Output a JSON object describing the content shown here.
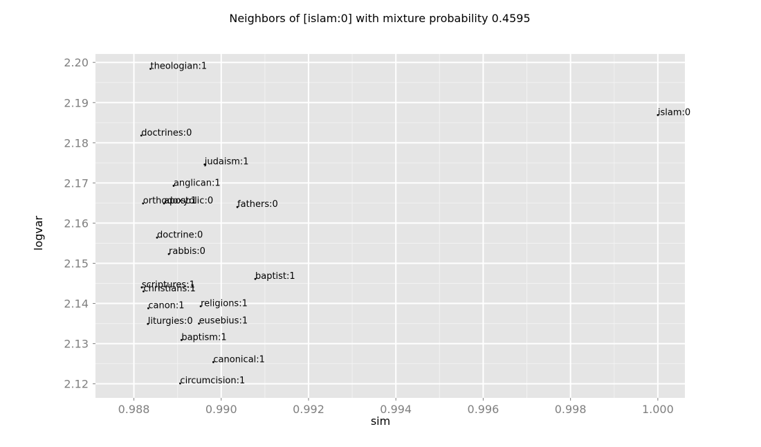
{
  "chart_data": {
    "type": "scatter",
    "title": "Neighbors of [islam:0] with mixture probability 0.4595",
    "xlabel": "sim",
    "ylabel": "logvar",
    "xlim": [
      0.98712,
      1.00062
    ],
    "ylim": [
      2.1165,
      2.2021
    ],
    "x_ticks": [
      0.988,
      0.99,
      0.992,
      0.994,
      0.996,
      0.998,
      1.0
    ],
    "x_tick_labels": [
      "0.988",
      "0.990",
      "0.992",
      "0.994",
      "0.996",
      "0.998",
      "1.000"
    ],
    "y_ticks": [
      2.12,
      2.13,
      2.14,
      2.15,
      2.16,
      2.17,
      2.18,
      2.19,
      2.2
    ],
    "y_tick_labels": [
      "2.12",
      "2.13",
      "2.14",
      "2.15",
      "2.16",
      "2.17",
      "2.18",
      "2.19",
      "2.20"
    ],
    "grid": true,
    "points": [
      {
        "label": "theologian:1",
        "x": 0.98838,
        "y": 2.1984
      },
      {
        "label": "islam:0",
        "x": 1.0,
        "y": 2.1869
      },
      {
        "label": "doctrines:0",
        "x": 0.98817,
        "y": 2.1818
      },
      {
        "label": "judaism:1",
        "x": 0.98962,
        "y": 2.1746
      },
      {
        "label": "anglican:1",
        "x": 0.98891,
        "y": 2.1693
      },
      {
        "label": "orthodoxy:1",
        "x": 0.98821,
        "y": 2.1649
      },
      {
        "label": "apostolic:0",
        "x": 0.98869,
        "y": 2.1649
      },
      {
        "label": "fathers:0",
        "x": 0.99037,
        "y": 2.164
      },
      {
        "label": "doctrine:0",
        "x": 0.98853,
        "y": 2.1564
      },
      {
        "label": "rabbis:0",
        "x": 0.9888,
        "y": 2.1523
      },
      {
        "label": "baptist:1",
        "x": 0.99078,
        "y": 2.1461
      },
      {
        "label": "scriptures:1",
        "x": 0.98818,
        "y": 2.144
      },
      {
        "label": "christians:1",
        "x": 0.98822,
        "y": 2.143
      },
      {
        "label": "canon:1",
        "x": 0.98833,
        "y": 2.1388
      },
      {
        "label": "religions:1",
        "x": 0.98953,
        "y": 2.1393
      },
      {
        "label": "liturgies:0",
        "x": 0.98832,
        "y": 2.1349
      },
      {
        "label": "eusebius:1",
        "x": 0.98949,
        "y": 2.135
      },
      {
        "label": "baptism:1",
        "x": 0.98909,
        "y": 2.1309
      },
      {
        "label": "canonical:1",
        "x": 0.98982,
        "y": 2.1254
      },
      {
        "label": "circumcision:1",
        "x": 0.98906,
        "y": 2.1201
      }
    ]
  }
}
